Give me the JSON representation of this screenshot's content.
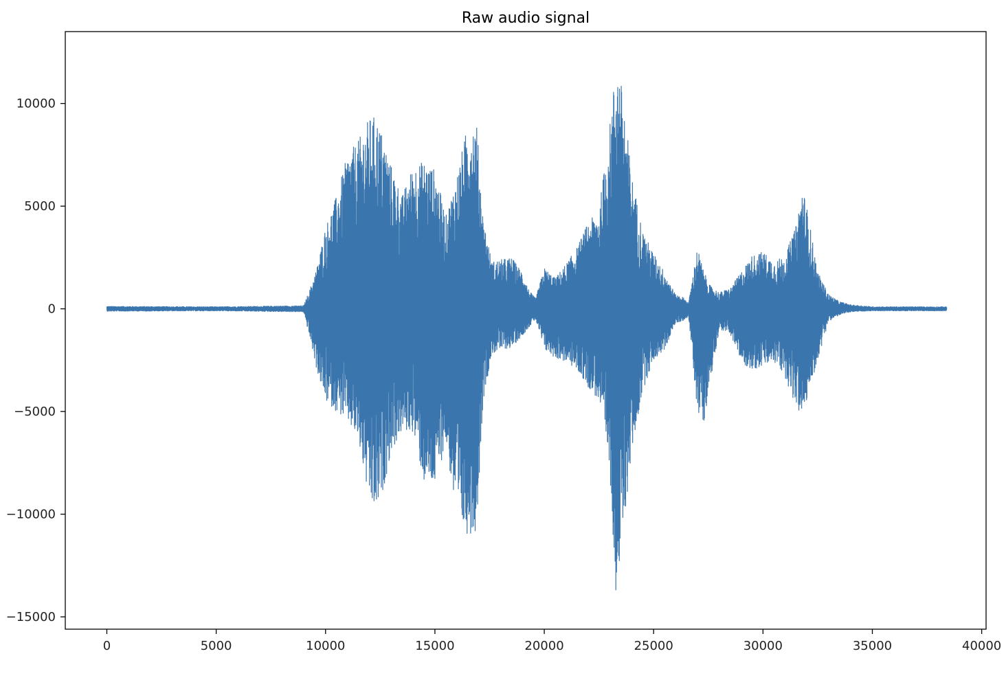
{
  "chart_data": {
    "type": "line",
    "title": "Raw audio signal",
    "xlabel": "",
    "ylabel": "",
    "xlim": [
      -1900,
      40200
    ],
    "ylim": [
      -15600,
      13500
    ],
    "grid": false,
    "legend": "none",
    "line_color": "#3a75ae",
    "xticks": [
      0,
      5000,
      10000,
      15000,
      20000,
      25000,
      30000,
      35000,
      40000
    ],
    "xtick_labels": [
      "0",
      "5000",
      "10000",
      "15000",
      "20000",
      "25000",
      "30000",
      "35000",
      "40000"
    ],
    "yticks": [
      10000,
      5000,
      0,
      -5000,
      -10000,
      -15000
    ],
    "ytick_labels": [
      "10000",
      "5000",
      "0",
      "−5000",
      "−10000",
      "−15000"
    ],
    "series": [
      {
        "sample_count": 38400,
        "envelope": {
          "x": [
            0,
            5000,
            9000,
            9300,
            9600,
            10000,
            10500,
            11000,
            11500,
            12000,
            12300,
            12600,
            13000,
            13500,
            14000,
            14500,
            15000,
            15500,
            16000,
            16500,
            16900,
            17200,
            17600,
            18000,
            18500,
            19000,
            19300,
            19600,
            20000,
            20500,
            21000,
            21500,
            22000,
            22500,
            23000,
            23300,
            23600,
            24000,
            24500,
            25000,
            25500,
            26000,
            26300,
            26600,
            27000,
            27300,
            27600,
            28000,
            28500,
            29000,
            29500,
            30000,
            30500,
            31000,
            31500,
            31800,
            32000,
            32500,
            33000,
            33500,
            34000,
            35000,
            38400
          ],
          "upper": [
            120,
            100,
            150,
            1000,
            2000,
            4000,
            5500,
            7500,
            8200,
            9300,
            9400,
            8500,
            7000,
            5500,
            7000,
            7200,
            6800,
            4500,
            6500,
            9000,
            9200,
            4500,
            2300,
            2400,
            2500,
            1800,
            900,
            500,
            2000,
            1500,
            2200,
            3000,
            4200,
            4800,
            9000,
            12200,
            10500,
            6500,
            3800,
            2700,
            1800,
            700,
            600,
            300,
            3000,
            1800,
            1100,
            800,
            1000,
            1800,
            2600,
            2800,
            2300,
            2600,
            4000,
            6000,
            5000,
            1800,
            700,
            350,
            200,
            100,
            100
          ],
          "lower": [
            -120,
            -100,
            -150,
            -1500,
            -3000,
            -4500,
            -5000,
            -5500,
            -6500,
            -9500,
            -10000,
            -9000,
            -7000,
            -6000,
            -6000,
            -8500,
            -8700,
            -6500,
            -10500,
            -11000,
            -10800,
            -4500,
            -2200,
            -2000,
            -1900,
            -1300,
            -900,
            -500,
            -2000,
            -2400,
            -2600,
            -3000,
            -3800,
            -4500,
            -8000,
            -14300,
            -11000,
            -7000,
            -4000,
            -2500,
            -2000,
            -700,
            -600,
            -400,
            -5000,
            -5500,
            -3500,
            -1000,
            -1200,
            -2600,
            -3000,
            -2800,
            -2600,
            -3300,
            -4800,
            -5300,
            -4500,
            -2500,
            -600,
            -300,
            -150,
            -100,
            -100
          ]
        }
      }
    ]
  }
}
